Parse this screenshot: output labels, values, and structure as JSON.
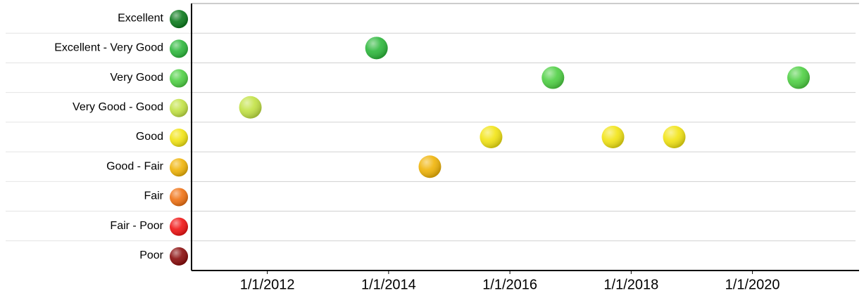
{
  "chart_data": {
    "type": "scatter",
    "categories": [
      {
        "name": "Excellent",
        "color": "#0b7a1c"
      },
      {
        "name": "Excellent - Very Good",
        "color": "#2db83c"
      },
      {
        "name": "Very Good",
        "color": "#4fd044"
      },
      {
        "name": "Very Good - Good",
        "color": "#c2e244"
      },
      {
        "name": "Good",
        "color": "#f2e414"
      },
      {
        "name": "Good - Fair",
        "color": "#f0b408"
      },
      {
        "name": "Fair",
        "color": "#f07214"
      },
      {
        "name": "Fair - Poor",
        "color": "#f01414"
      },
      {
        "name": "Poor",
        "color": "#8a0c0c"
      }
    ],
    "x": [
      2011.72,
      2013.8,
      2014.68,
      2015.69,
      2016.71,
      2017.7,
      2018.71,
      2020.76
    ],
    "y": [
      "Very Good - Good",
      "Excellent - Very Good",
      "Good - Fair",
      "Good",
      "Very Good",
      "Good",
      "Good",
      "Very Good"
    ],
    "xlim": [
      2010.75,
      2021.7
    ],
    "xticks": [
      {
        "value": 2012,
        "label": "1/1/2012"
      },
      {
        "value": 2014,
        "label": "1/1/2014"
      },
      {
        "value": 2016,
        "label": "1/1/2016"
      },
      {
        "value": 2018,
        "label": "1/1/2018"
      },
      {
        "value": 2020,
        "label": "1/1/2020"
      }
    ],
    "grid": true
  }
}
